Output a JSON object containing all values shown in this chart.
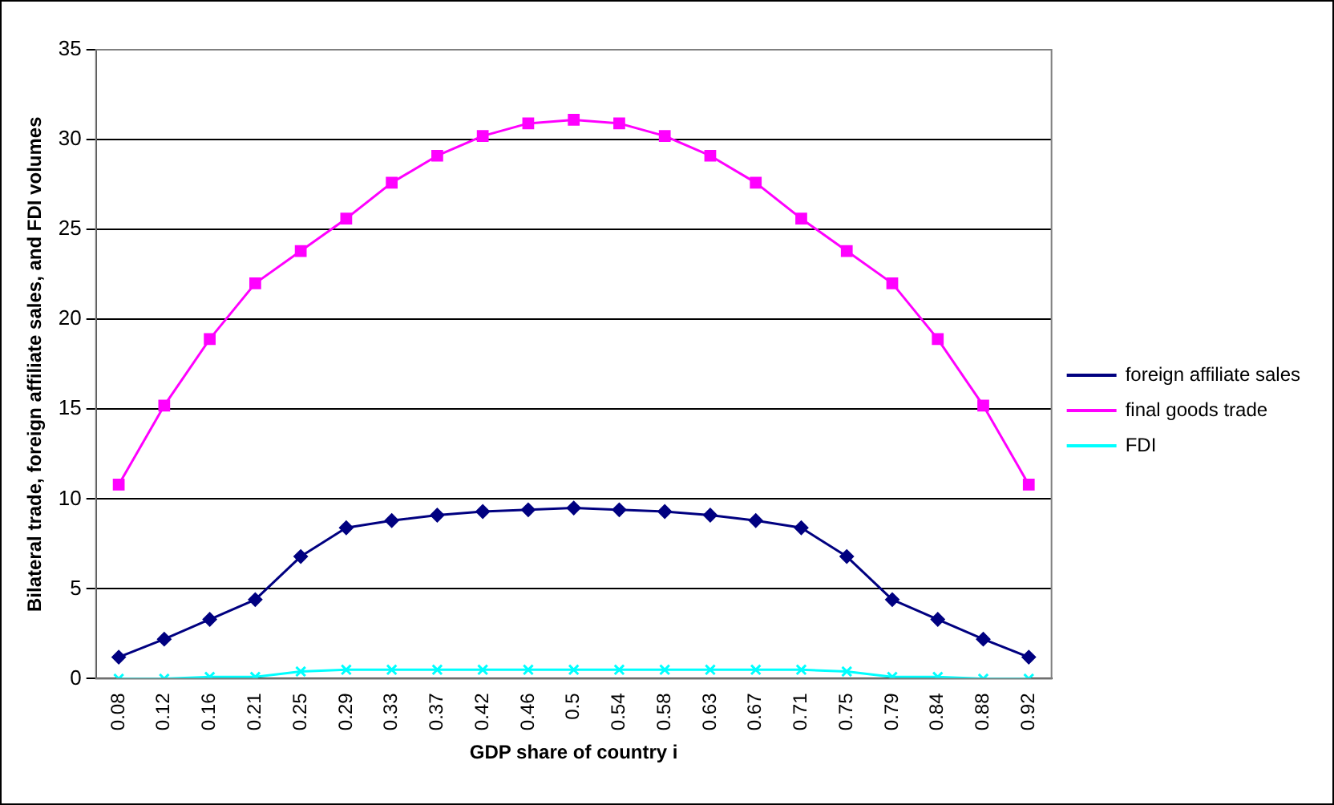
{
  "chart_data": {
    "type": "line",
    "xlabel": "GDP share of country i",
    "ylabel": "Bilateral trade, foreign affiliate sales, and FDI volumes",
    "categories": [
      "0.08",
      "0.12",
      "0.16",
      "0.21",
      "0.25",
      "0.29",
      "0.33",
      "0.37",
      "0.42",
      "0.46",
      "0.5",
      "0.54",
      "0.58",
      "0.63",
      "0.67",
      "0.71",
      "0.75",
      "0.79",
      "0.84",
      "0.88",
      "0.92"
    ],
    "series": [
      {
        "name": "foreign affiliate sales",
        "color": "#000080",
        "marker": "diamond",
        "values": [
          1.2,
          2.2,
          3.3,
          4.4,
          6.8,
          8.4,
          8.8,
          9.1,
          9.3,
          9.4,
          9.5,
          9.4,
          9.3,
          9.1,
          8.8,
          8.4,
          6.8,
          4.4,
          3.3,
          2.2,
          1.2
        ]
      },
      {
        "name": "final goods trade",
        "color": "#ff00ff",
        "marker": "square",
        "values": [
          10.8,
          15.2,
          18.9,
          22.0,
          23.8,
          25.6,
          27.6,
          29.1,
          30.2,
          30.9,
          31.1,
          30.9,
          30.2,
          29.1,
          27.6,
          25.6,
          23.8,
          22.0,
          18.9,
          15.2,
          10.8
        ]
      },
      {
        "name": "FDI",
        "color": "#00ffff",
        "marker": "cross",
        "values": [
          0,
          0,
          0.1,
          0.1,
          0.4,
          0.5,
          0.5,
          0.5,
          0.5,
          0.5,
          0.5,
          0.5,
          0.5,
          0.5,
          0.5,
          0.5,
          0.4,
          0.1,
          0.1,
          0,
          0
        ]
      }
    ],
    "ylim": [
      0,
      35
    ],
    "yticks": [
      0,
      5,
      10,
      15,
      20,
      25,
      30,
      35
    ],
    "grid": "y",
    "legend": "right"
  }
}
